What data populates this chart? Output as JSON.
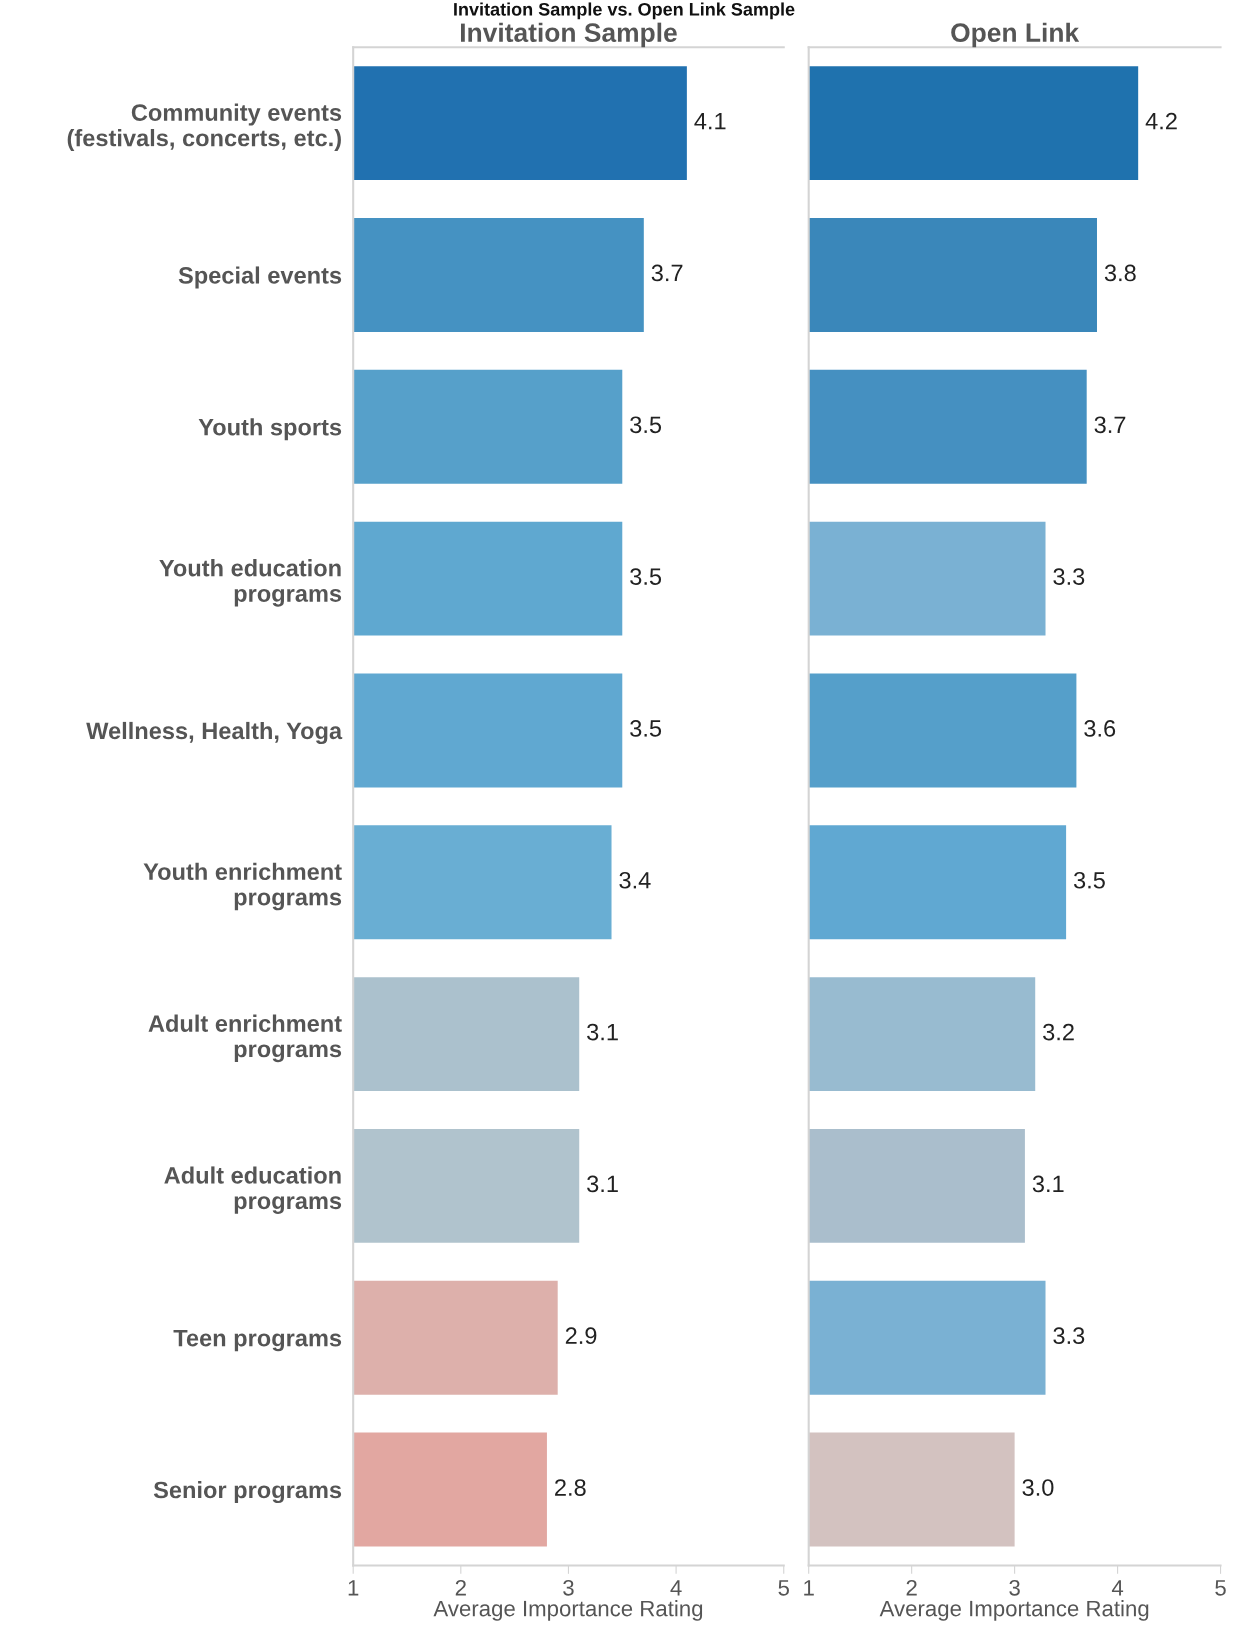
{
  "chart_data": [
    {
      "type": "bar",
      "orientation": "horizontal",
      "title": "Invitation Sample",
      "xlabel": "Average Importance Rating",
      "annotations": [
        "Invitation Sample vs. Open Link Sample"
      ],
      "categories": [
        "Community events\n(festivals, concerts, etc.)",
        "Special events",
        "Youth sports",
        "Youth education\nprograms",
        "Wellness, Health, Yoga",
        "Youth enrichment\nprograms",
        "Adult enrichment\nprograms",
        "Adult education\nprograms",
        "Teen programs",
        "Senior programs"
      ],
      "values": [
        4.1,
        3.7,
        3.5,
        3.5,
        3.5,
        3.4,
        3.1,
        3.1,
        2.9,
        2.8
      ],
      "colors": [
        "#2171b0",
        "#4592c2",
        "#56a0ca",
        "#5fa8d0",
        "#60a8d1",
        "#69aed3",
        "#abc1cd",
        "#b0c3cd",
        "#ddb0ab",
        "#e2a7a1"
      ],
      "xlim": [
        1,
        5
      ],
      "xticks": [
        1,
        2,
        3,
        4,
        5
      ],
      "data_labels": true,
      "grid": false,
      "legend": false
    },
    {
      "type": "bar",
      "orientation": "horizontal",
      "title": "Open Link",
      "xlabel": "Average Importance Rating",
      "categories": [
        null,
        null,
        null,
        null,
        null,
        null,
        null,
        null,
        null,
        null
      ],
      "values": [
        4.2,
        3.8,
        3.7,
        3.3,
        3.6,
        3.5,
        3.2,
        3.1,
        3.3,
        3.0
      ],
      "value_labels": [
        "4.2",
        "3.8",
        "3.7",
        "3.3",
        "3.6",
        "3.5",
        "3.2",
        "3.1",
        "3.3",
        "3.0"
      ],
      "colors": [
        "#1f72ae",
        "#3a87ba",
        "#4590c1",
        "#7ab1d3",
        "#559fca",
        "#60a8d2",
        "#98bbd0",
        "#aabecc",
        "#7ab1d3",
        "#d3c2c0"
      ],
      "xlim": [
        1,
        5
      ],
      "xticks": [
        1,
        2,
        3,
        4,
        5
      ],
      "grid": false,
      "legend": false,
      "tick_labels": "x"
    }
  ]
}
